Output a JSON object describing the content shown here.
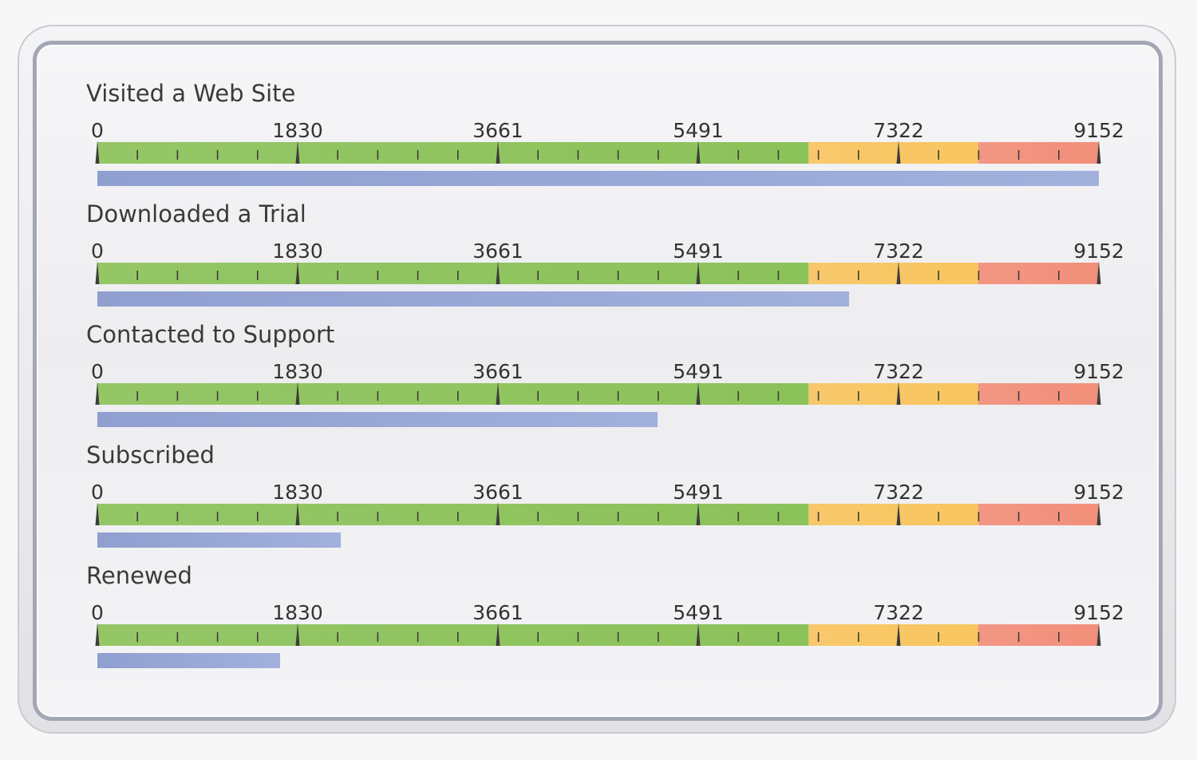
{
  "chart_data": {
    "type": "bullet",
    "scale": {
      "min": 0,
      "max": 9152,
      "major_ticks": [
        "0",
        "1830",
        "3661",
        "5491",
        "7322",
        "9152"
      ],
      "minor_ticks_per_major": 4
    },
    "ranges": [
      {
        "from": 0,
        "to": 6500,
        "color": "#8cc25a"
      },
      {
        "from": 6500,
        "to": 8050,
        "color": "#f8c55f"
      },
      {
        "from": 8050,
        "to": 9152,
        "color": "#f28f7a"
      }
    ],
    "bar_color": "#8f9fd0",
    "gauges": [
      {
        "title": "Visited a Web Site",
        "value": 9152
      },
      {
        "title": "Downloaded a Trial",
        "value": 6870
      },
      {
        "title": "Contacted to Support",
        "value": 5120
      },
      {
        "title": "Subscribed",
        "value": 2225
      },
      {
        "title": "Renewed",
        "value": 1670
      }
    ]
  }
}
